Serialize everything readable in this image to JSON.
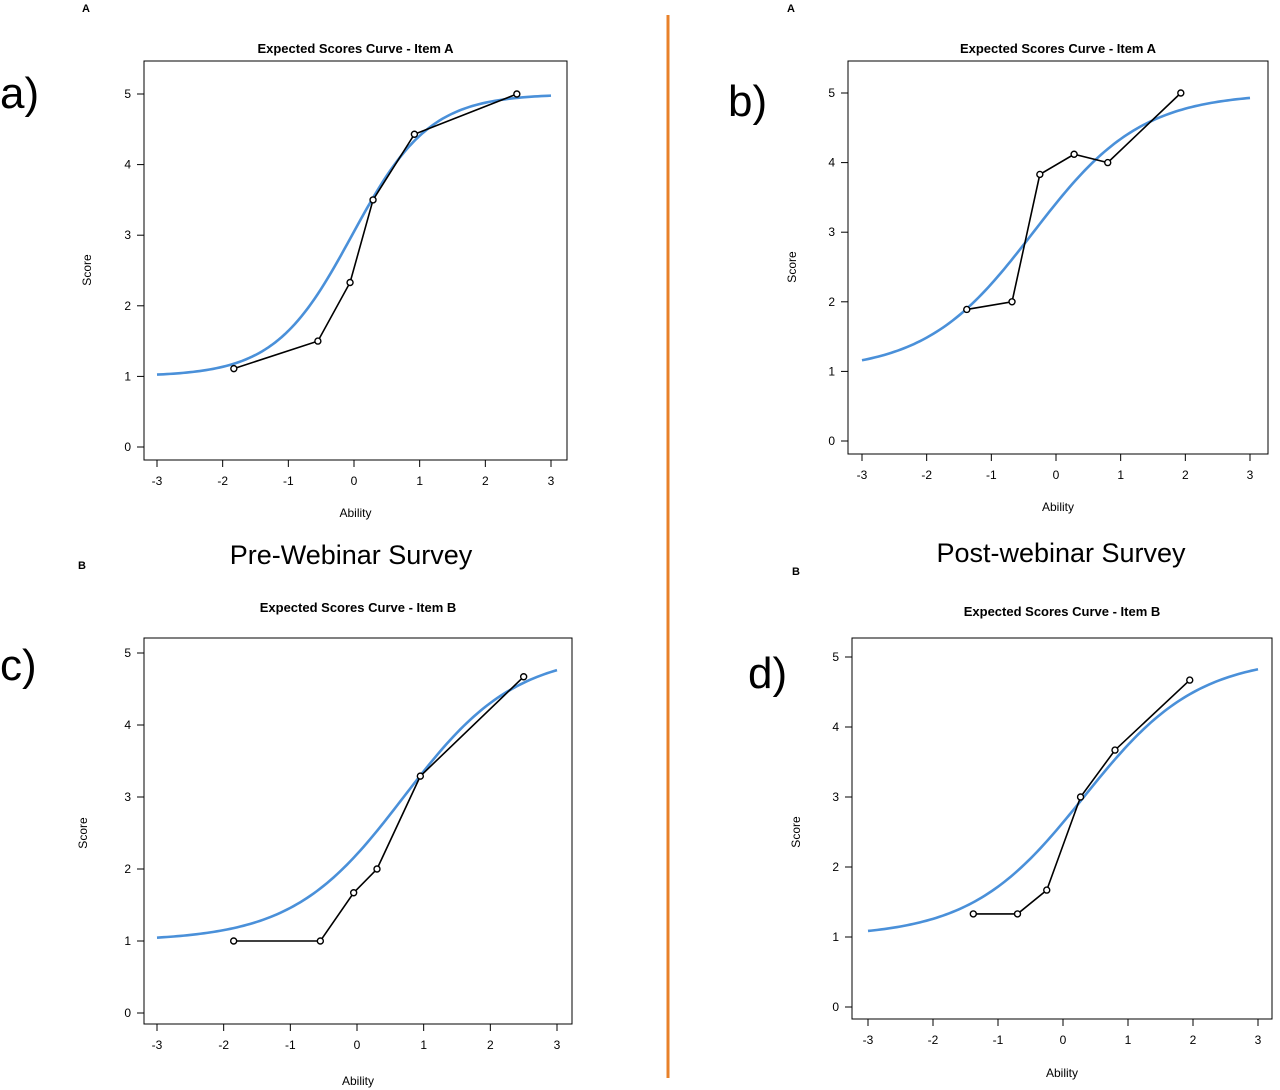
{
  "headings": {
    "pre": "Pre-Webinar Survey",
    "post": "Post-webinar Survey"
  },
  "divider_color": "#e8812a",
  "curve_color": "#4a90d9",
  "observed_color": "#000000",
  "chart_data": [
    {
      "panel_label": "a)",
      "corner_tag": "A",
      "type": "line",
      "title": "Expected Scores Curve - Item  A",
      "xlabel": "Ability",
      "ylabel": "Score",
      "xlim": [
        -3,
        3
      ],
      "ylim": [
        0,
        5
      ],
      "xticks": [
        -3,
        -2,
        -1,
        0,
        1,
        2,
        3
      ],
      "yticks": [
        0,
        1,
        2,
        3,
        4,
        5
      ],
      "expected_curve": {
        "min": 1.0,
        "max": 5.0,
        "slope": 1.7,
        "location": -0.03
      },
      "observed": {
        "x": [
          -1.83,
          -0.55,
          -0.06,
          0.29,
          0.92,
          2.48
        ],
        "y": [
          1.11,
          1.5,
          2.33,
          3.5,
          4.43,
          5.0
        ]
      }
    },
    {
      "panel_label": "b)",
      "corner_tag": "A",
      "type": "line",
      "title": "Expected Scores Curve - Item  A",
      "xlabel": "Ability",
      "ylabel": "Score",
      "xlim": [
        -3,
        3
      ],
      "ylim": [
        0,
        5
      ],
      "xticks": [
        -3,
        -2,
        -1,
        0,
        1,
        2,
        3
      ],
      "yticks": [
        0,
        1,
        2,
        3,
        4,
        5
      ],
      "expected_curve": {
        "min": 1.0,
        "max": 5.0,
        "slope": 1.2,
        "location": -0.35
      },
      "observed": {
        "x": [
          -1.38,
          -0.68,
          -0.25,
          0.28,
          0.8,
          1.93
        ],
        "y": [
          1.89,
          2.0,
          3.83,
          4.12,
          4.0,
          5.0
        ]
      }
    },
    {
      "panel_label": "c)",
      "corner_tag": "B",
      "type": "line",
      "title": "Expected Scores Curve - Item  B",
      "xlabel": "Ability",
      "ylabel": "Score",
      "xlim": [
        -3,
        3
      ],
      "ylim": [
        0,
        5
      ],
      "xticks": [
        -3,
        -2,
        -1,
        0,
        1,
        2,
        3
      ],
      "yticks": [
        0,
        1,
        2,
        3,
        4,
        5
      ],
      "expected_curve": {
        "min": 1.0,
        "max": 5.0,
        "slope": 1.2,
        "location": 0.7
      },
      "observed": {
        "x": [
          -1.85,
          -0.55,
          -0.05,
          0.3,
          0.95,
          2.5
        ],
        "y": [
          1.0,
          1.0,
          1.67,
          2.0,
          3.29,
          4.67
        ]
      }
    },
    {
      "panel_label": "d)",
      "corner_tag": "B",
      "type": "line",
      "title": "Expected Scores Curve - Item  B",
      "xlabel": "Ability",
      "ylabel": "Score",
      "xlim": [
        -3,
        3
      ],
      "ylim": [
        0,
        5
      ],
      "xticks": [
        -3,
        -2,
        -1,
        0,
        1,
        2,
        3
      ],
      "yticks": [
        0,
        1,
        2,
        3,
        4,
        5
      ],
      "expected_curve": {
        "min": 1.0,
        "max": 5.0,
        "slope": 1.15,
        "location": 0.32
      },
      "observed": {
        "x": [
          -1.38,
          -0.7,
          -0.25,
          0.27,
          0.8,
          1.95
        ],
        "y": [
          1.33,
          1.33,
          1.67,
          3.0,
          3.67,
          4.67
        ]
      }
    }
  ]
}
